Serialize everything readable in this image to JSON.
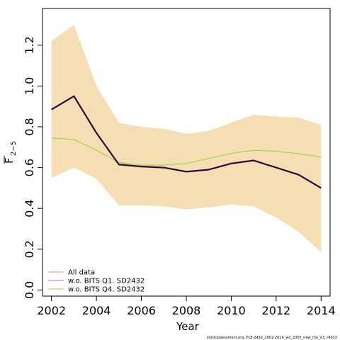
{
  "chart_data": {
    "type": "line",
    "xlabel": "Year",
    "ylabel_main": "F",
    "ylabel_sub": "2−5",
    "xlim": [
      2001.6,
      2014.4
    ],
    "ylim": [
      -0.03,
      1.38
    ],
    "x_ticks": [
      2002,
      2004,
      2006,
      2008,
      2010,
      2012,
      2014
    ],
    "x_tick_labels": [
      "2002",
      "2004",
      "2006",
      "2008",
      "2010",
      "2012",
      "2014"
    ],
    "y_ticks": [
      0.0,
      0.2,
      0.4,
      0.6,
      0.8,
      1.0,
      1.2
    ],
    "y_tick_labels": [
      "0.0",
      "0.2",
      "0.4",
      "0.6",
      "0.8",
      "1.0",
      "1.2"
    ],
    "x": [
      2002,
      2003,
      2004,
      2005,
      2006,
      2007,
      2008,
      2009,
      2010,
      2011,
      2012,
      2013,
      2014
    ],
    "band": {
      "upper": [
        1.22,
        1.3,
        1.0,
        0.82,
        0.8,
        0.79,
        0.765,
        0.78,
        0.82,
        0.86,
        0.85,
        0.845,
        0.81
      ],
      "lower": [
        0.55,
        0.6,
        0.545,
        0.415,
        0.415,
        0.41,
        0.395,
        0.405,
        0.42,
        0.41,
        0.355,
        0.285,
        0.185
      ],
      "color": "#f5deb3"
    },
    "series": [
      {
        "name": "All data",
        "color": "#e8787a",
        "values": [
          0.885,
          0.95,
          0.77,
          0.615,
          0.605,
          0.6,
          0.58,
          0.59,
          0.62,
          0.635,
          0.6,
          0.565,
          0.5
        ]
      },
      {
        "name": "w.o. BITS Q1. SD2432",
        "color": "#2a0a3a",
        "values": [
          0.885,
          0.95,
          0.77,
          0.615,
          0.605,
          0.6,
          0.58,
          0.59,
          0.62,
          0.635,
          0.6,
          0.565,
          0.5
        ]
      },
      {
        "name": "w.o. BITS Q4. SD2432",
        "color": "#8cd636",
        "values": [
          0.745,
          0.738,
          0.685,
          0.625,
          0.612,
          0.613,
          0.62,
          0.645,
          0.67,
          0.685,
          0.68,
          0.668,
          0.652
        ]
      }
    ],
    "legend_position": "bottom-left",
    "legend_line_colors": [
      "#f08080",
      "#b86ab8",
      "#8cd636"
    ],
    "grid": false
  },
  "footer": "stockassessment.org, PLE-2432_2002-2014_wo_2005_new_mo_V3, r4913"
}
